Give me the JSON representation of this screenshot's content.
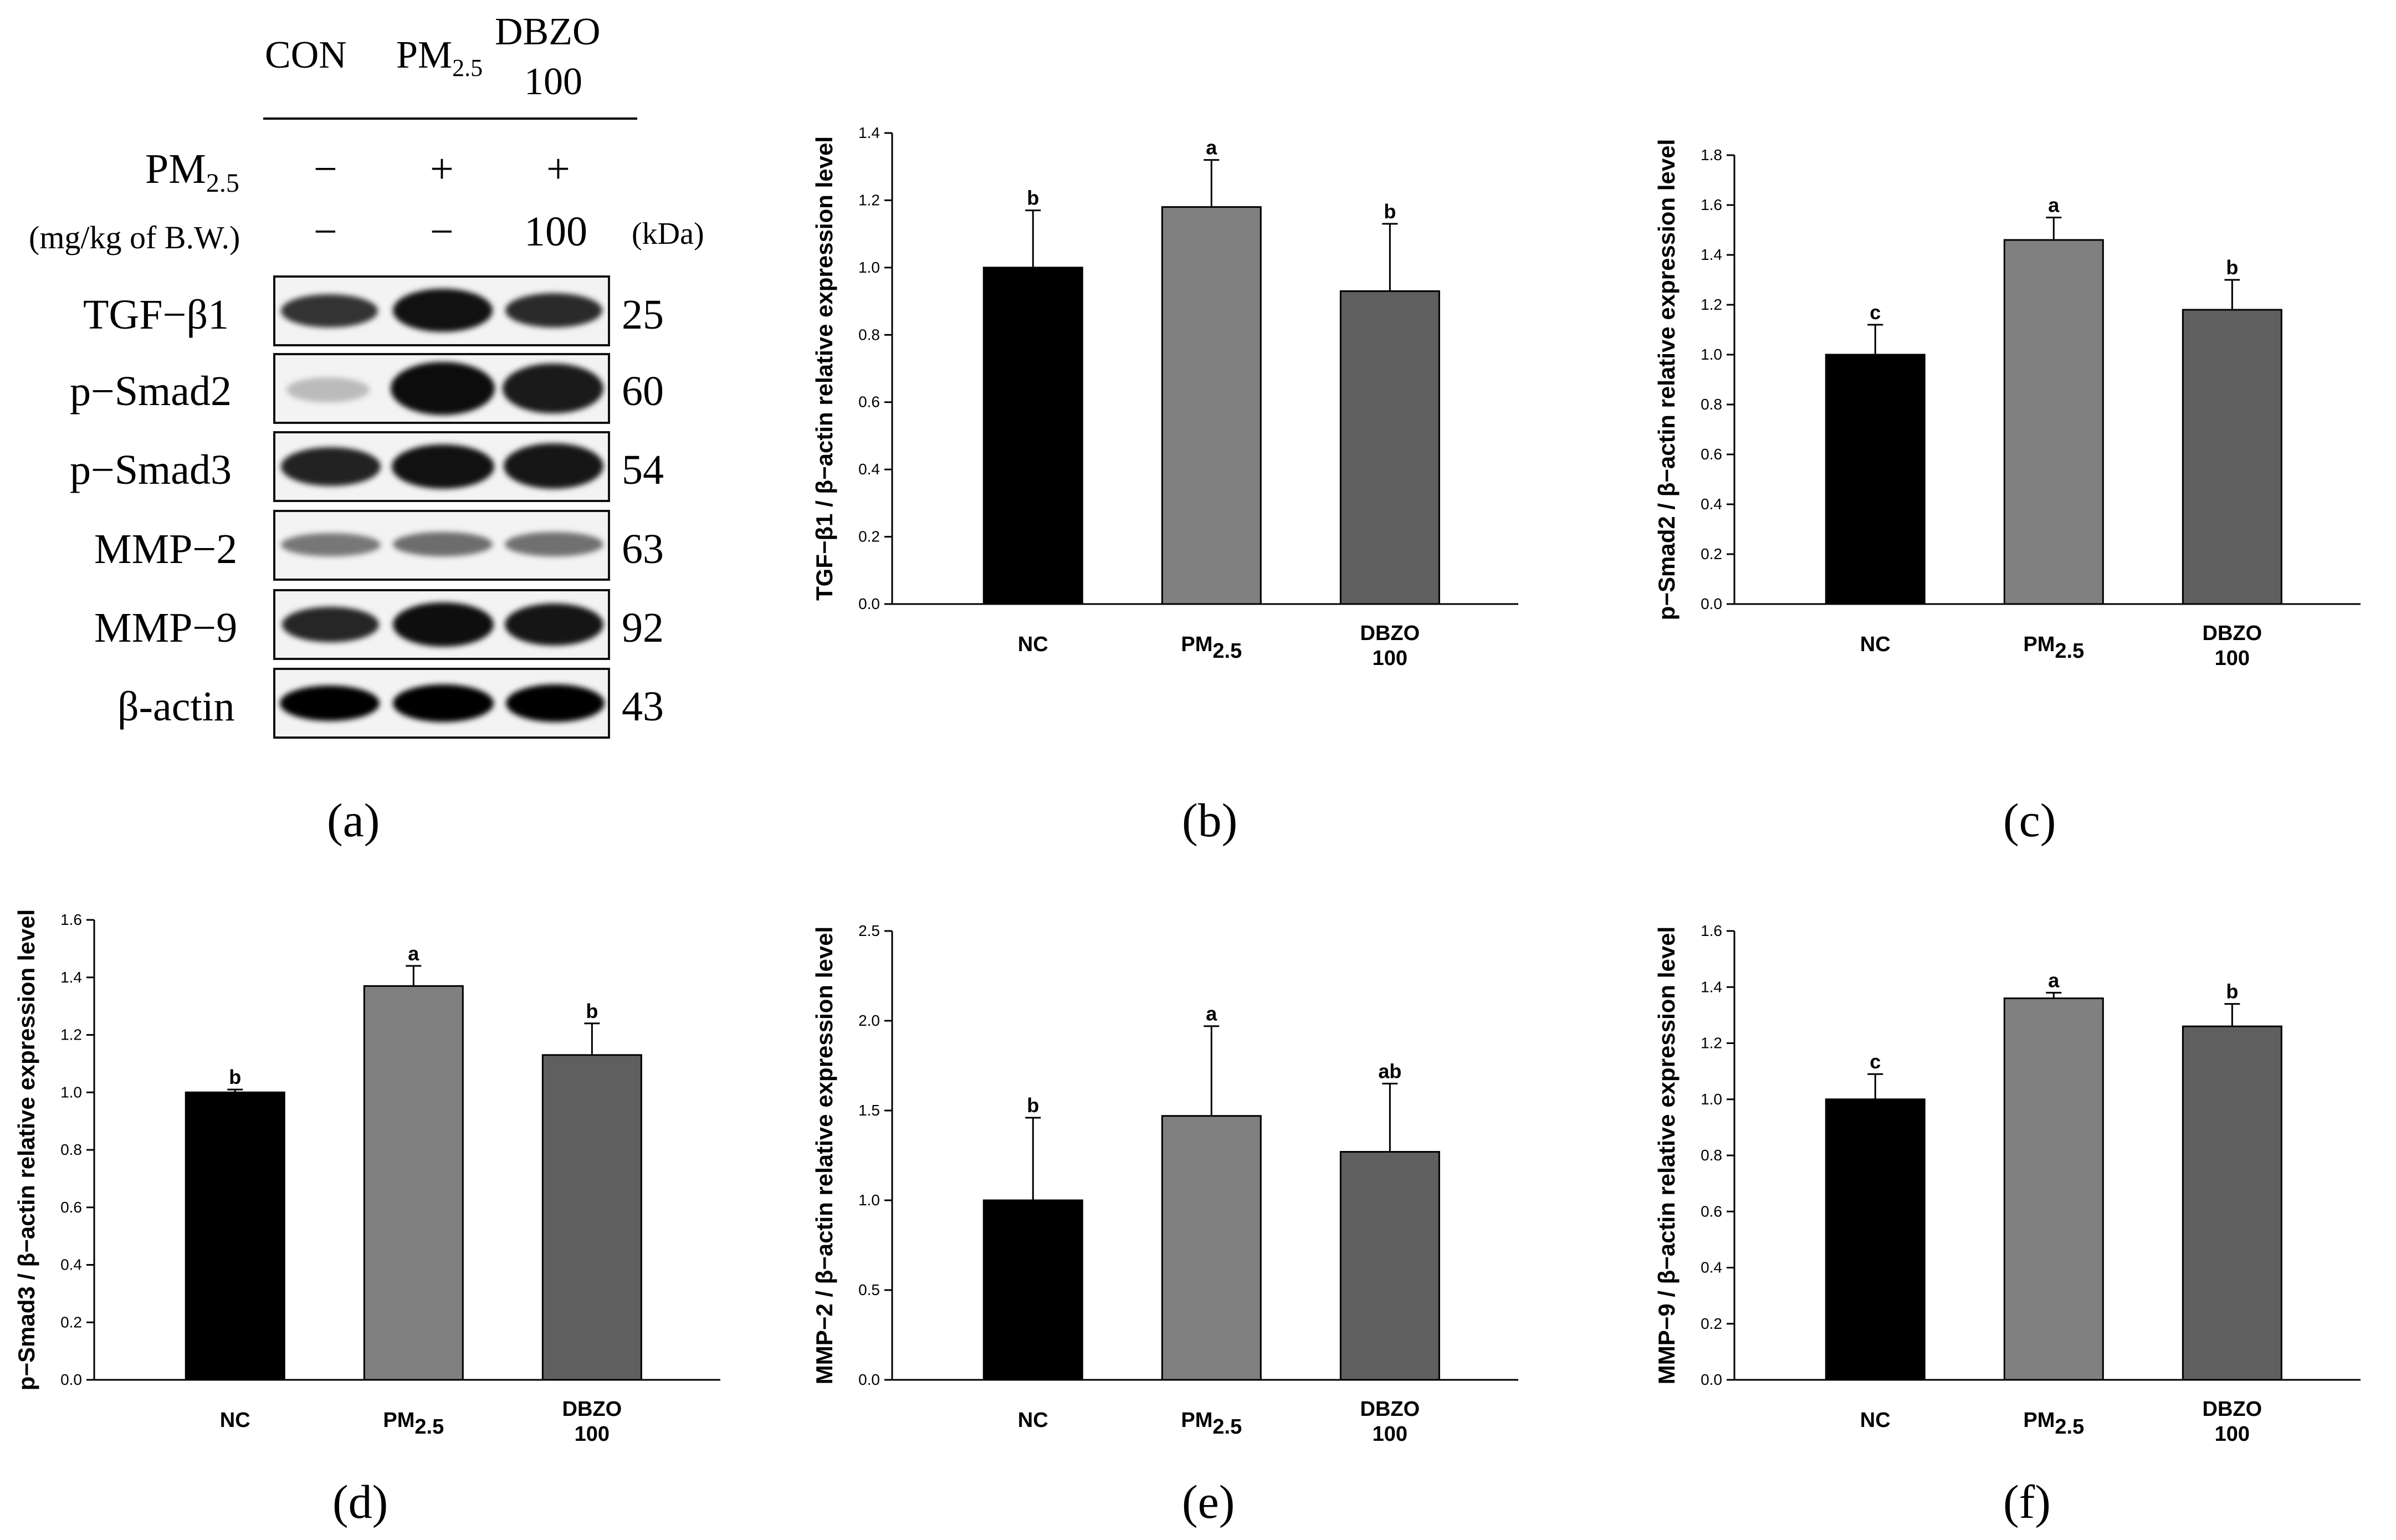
{
  "blot": {
    "header": {
      "con": "CON",
      "pm_main": "PM",
      "pm_sub": "2.5",
      "dbzo_line1": "DBZO",
      "dbzo_line2": "100"
    },
    "row_pm": {
      "label_main": "PM",
      "label_sub": "2.5",
      "v1": "−",
      "v2": "+",
      "v3": "+"
    },
    "row_dose": {
      "label": "(mg/kg of B.W.)",
      "v1": "−",
      "v2": "−",
      "v3": "100",
      "unit": "(kDa)"
    },
    "proteins": [
      {
        "name": "TGF−β1",
        "kda": "25"
      },
      {
        "name": "p−Smad2",
        "kda": "60"
      },
      {
        "name": "p−Smad3",
        "kda": "54"
      },
      {
        "name": "MMP−2",
        "kda": "63"
      },
      {
        "name": "MMP−9",
        "kda": "92"
      },
      {
        "name": "β-actin",
        "kda": "43"
      }
    ],
    "panel_label": "(a)"
  },
  "colors": {
    "nc": "#000000",
    "pm": "#808080",
    "dbzo": "#5f5f5f"
  },
  "chart_data": [
    {
      "id": "b",
      "type": "bar",
      "panel_label": "(b)",
      "ylabel": "TGF−β1 / β−actin relative expression level",
      "categories": [
        "NC",
        "PM2.5",
        "DBZO 100"
      ],
      "values": [
        1.0,
        1.18,
        0.93
      ],
      "errors": [
        0.17,
        0.14,
        0.2
      ],
      "letters": [
        "b",
        "a",
        "b"
      ],
      "ylim": [
        0,
        1.4
      ],
      "yticks": [
        "0.0",
        "0.2",
        "0.4",
        "0.6",
        "0.8",
        "1.0",
        "1.2",
        "1.4"
      ]
    },
    {
      "id": "c",
      "type": "bar",
      "panel_label": "(c)",
      "ylabel": "p−Smad2 / β−actin relative expression level",
      "categories": [
        "NC",
        "PM2.5",
        "DBZO 100"
      ],
      "values": [
        1.0,
        1.46,
        1.18
      ],
      "errors": [
        0.12,
        0.09,
        0.12
      ],
      "letters": [
        "c",
        "a",
        "b"
      ],
      "ylim": [
        0,
        1.8
      ],
      "yticks": [
        "0.0",
        "0.2",
        "0.4",
        "0.6",
        "0.8",
        "1.0",
        "1.2",
        "1.4",
        "1.6",
        "1.8"
      ]
    },
    {
      "id": "d",
      "type": "bar",
      "panel_label": "(d)",
      "ylabel": "p−Smad3 / β−actin relative expression level",
      "categories": [
        "NC",
        "PM2.5",
        "DBZO 100"
      ],
      "values": [
        1.0,
        1.37,
        1.13
      ],
      "errors": [
        0.01,
        0.07,
        0.11
      ],
      "letters": [
        "b",
        "a",
        "b"
      ],
      "ylim": [
        0,
        1.6
      ],
      "yticks": [
        "0.0",
        "0.2",
        "0.4",
        "0.6",
        "0.8",
        "1.0",
        "1.2",
        "1.4",
        "1.6"
      ]
    },
    {
      "id": "e",
      "type": "bar",
      "panel_label": "(e)",
      "ylabel": "MMP−2 / β−actin relative expression level",
      "categories": [
        "NC",
        "PM2.5",
        "DBZO 100"
      ],
      "values": [
        1.0,
        1.47,
        1.27
      ],
      "errors": [
        0.46,
        0.5,
        0.38
      ],
      "letters": [
        "b",
        "a",
        "ab"
      ],
      "ylim": [
        0,
        2.5
      ],
      "yticks": [
        "0.0",
        "0.5",
        "1.0",
        "1.5",
        "2.0",
        "2.5"
      ]
    },
    {
      "id": "f",
      "type": "bar",
      "panel_label": "(f)",
      "ylabel": "MMP−9 / β−actin relative expression level",
      "categories": [
        "NC",
        "PM2.5",
        "DBZO 100"
      ],
      "values": [
        1.0,
        1.36,
        1.26
      ],
      "errors": [
        0.09,
        0.02,
        0.08
      ],
      "letters": [
        "c",
        "a",
        "b"
      ],
      "ylim": [
        0,
        1.6
      ],
      "yticks": [
        "0.0",
        "0.2",
        "0.4",
        "0.6",
        "0.8",
        "1.0",
        "1.2",
        "1.4",
        "1.6"
      ]
    }
  ]
}
